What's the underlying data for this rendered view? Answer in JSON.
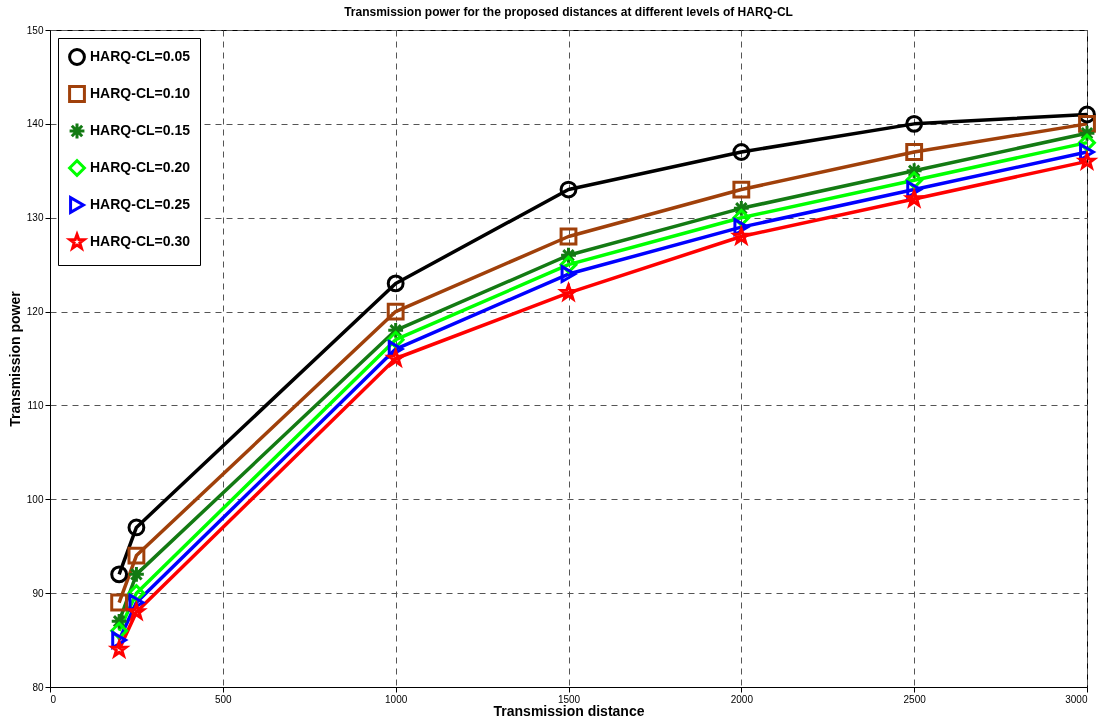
{
  "chart_data": {
    "type": "line",
    "title": "Transmission power for the proposed distances at different levels of HARQ-CL",
    "xlabel": "Transmission distance",
    "ylabel": "Transmission power",
    "x": [
      200,
      250,
      1000,
      1500,
      2000,
      2500,
      3000
    ],
    "xlim": [
      0,
      3000
    ],
    "xticks": [
      0,
      500,
      1000,
      1500,
      2000,
      2500,
      3000
    ],
    "ylim": [
      80,
      150
    ],
    "yticks": [
      80,
      90,
      100,
      110,
      120,
      130,
      140,
      150
    ],
    "grid": true,
    "legend": "top left",
    "line_style": "solid",
    "series": [
      {
        "name": "HARQ-CL=0.05",
        "color": "#000000",
        "marker": "circle",
        "values": [
          92,
          97,
          123,
          133,
          137,
          140,
          141
        ]
      },
      {
        "name": "HARQ-CL=0.10",
        "color": "#a0400a",
        "marker": "square",
        "values": [
          89,
          94,
          120,
          128,
          133,
          137,
          140
        ]
      },
      {
        "name": "HARQ-CL=0.15",
        "color": "#137a13",
        "marker": "cross",
        "values": [
          87,
          92,
          118,
          126,
          131,
          135,
          139
        ]
      },
      {
        "name": "HARQ-CL=0.20",
        "color": "#00ff00",
        "marker": "diamond",
        "values": [
          86,
          90,
          117,
          125,
          130,
          134,
          138
        ]
      },
      {
        "name": "HARQ-CL=0.25",
        "color": "#0000ff",
        "marker": "triangle",
        "values": [
          85,
          89,
          116,
          124,
          129,
          133,
          137
        ]
      },
      {
        "name": "HARQ-CL=0.30",
        "color": "#ff0000",
        "marker": "star",
        "values": [
          84,
          88,
          115,
          122,
          128,
          132,
          136
        ]
      }
    ]
  }
}
